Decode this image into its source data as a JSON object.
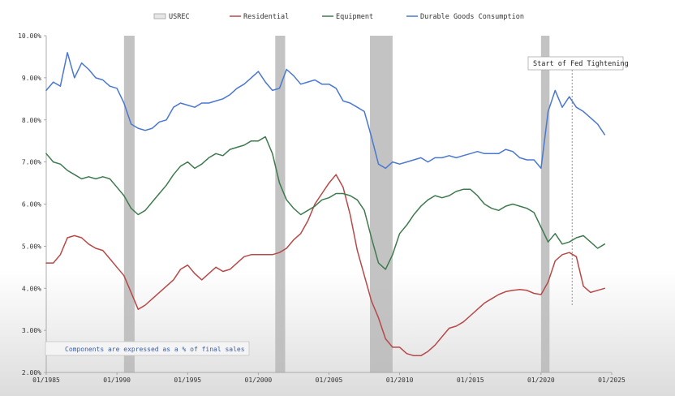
{
  "chart_data": {
    "type": "line",
    "title": "",
    "xlabel": "",
    "ylabel": "",
    "ylim": [
      2.0,
      10.0
    ],
    "xlim": [
      1985.0,
      2025.0
    ],
    "yticks": [
      "2.00%",
      "3.00%",
      "4.00%",
      "5.00%",
      "6.00%",
      "7.00%",
      "8.00%",
      "9.00%",
      "10.00%"
    ],
    "ytick_values": [
      2,
      3,
      4,
      5,
      6,
      7,
      8,
      9,
      10
    ],
    "xticks": [
      "01/1985",
      "01/1990",
      "01/1995",
      "01/2000",
      "01/2005",
      "01/2010",
      "01/2015",
      "01/2020",
      "01/2025"
    ],
    "xtick_values": [
      1985,
      1990,
      1995,
      2000,
      2005,
      2010,
      2015,
      2020,
      2025
    ],
    "legend": {
      "position": "top",
      "entries": [
        {
          "name": "USREC",
          "color": "#c8c8c8"
        },
        {
          "name": "Residential",
          "color": "#b84848"
        },
        {
          "name": "Equipment",
          "color": "#3e7a4e"
        },
        {
          "name": "Durable Goods Consumption",
          "color": "#4a78d0"
        }
      ]
    },
    "recessions": [
      {
        "start": 1990.5,
        "end": 1991.25
      },
      {
        "start": 2001.2,
        "end": 2001.9
      },
      {
        "start": 2007.9,
        "end": 2009.5
      },
      {
        "start": 2020.0,
        "end": 2020.6
      }
    ],
    "annotation": {
      "text": "Start of Fed Tightening",
      "x": 2022.2
    },
    "note": "Components are expressed as a % of final sales",
    "series": [
      {
        "name": "Residential",
        "color": "#b84848",
        "x": [
          1985.0,
          1985.5,
          1986.0,
          1986.5,
          1987.0,
          1987.5,
          1988.0,
          1988.5,
          1989.0,
          1989.5,
          1990.0,
          1990.5,
          1991.0,
          1991.5,
          1992.0,
          1992.5,
          1993.0,
          1993.5,
          1994.0,
          1994.5,
          1995.0,
          1995.5,
          1996.0,
          1996.5,
          1997.0,
          1997.5,
          1998.0,
          1998.5,
          1999.0,
          1999.5,
          2000.0,
          2000.5,
          2001.0,
          2001.5,
          2002.0,
          2002.5,
          2003.0,
          2003.5,
          2004.0,
          2004.5,
          2005.0,
          2005.5,
          2006.0,
          2006.5,
          2007.0,
          2007.5,
          2008.0,
          2008.5,
          2009.0,
          2009.5,
          2010.0,
          2010.5,
          2011.0,
          2011.5,
          2012.0,
          2012.5,
          2013.0,
          2013.5,
          2014.0,
          2014.5,
          2015.0,
          2015.5,
          2016.0,
          2016.5,
          2017.0,
          2017.5,
          2018.0,
          2018.5,
          2019.0,
          2019.5,
          2020.0,
          2020.5,
          2021.0,
          2021.5,
          2022.0,
          2022.5,
          2023.0,
          2023.5,
          2024.0,
          2024.5
        ],
        "values": [
          4.6,
          4.6,
          4.8,
          5.2,
          5.25,
          5.2,
          5.05,
          4.95,
          4.9,
          4.7,
          4.5,
          4.3,
          3.9,
          3.5,
          3.6,
          3.75,
          3.9,
          4.05,
          4.2,
          4.45,
          4.55,
          4.35,
          4.2,
          4.35,
          4.5,
          4.4,
          4.45,
          4.6,
          4.75,
          4.8,
          4.8,
          4.8,
          4.8,
          4.85,
          4.95,
          5.15,
          5.3,
          5.6,
          6.0,
          6.25,
          6.5,
          6.7,
          6.4,
          5.75,
          4.9,
          4.3,
          3.7,
          3.3,
          2.8,
          2.6,
          2.6,
          2.45,
          2.4,
          2.4,
          2.5,
          2.65,
          2.85,
          3.05,
          3.1,
          3.2,
          3.35,
          3.5,
          3.65,
          3.75,
          3.85,
          3.92,
          3.95,
          3.97,
          3.95,
          3.88,
          3.85,
          4.15,
          4.65,
          4.8,
          4.85,
          4.75,
          4.05,
          3.9,
          3.95,
          4.0
        ]
      },
      {
        "name": "Equipment",
        "color": "#3e7a4e",
        "x": [
          1985.0,
          1985.5,
          1986.0,
          1986.5,
          1987.0,
          1987.5,
          1988.0,
          1988.5,
          1989.0,
          1989.5,
          1990.0,
          1990.5,
          1991.0,
          1991.5,
          1992.0,
          1992.5,
          1993.0,
          1993.5,
          1994.0,
          1994.5,
          1995.0,
          1995.5,
          1996.0,
          1996.5,
          1997.0,
          1997.5,
          1998.0,
          1998.5,
          1999.0,
          1999.5,
          2000.0,
          2000.5,
          2001.0,
          2001.5,
          2002.0,
          2002.5,
          2003.0,
          2003.5,
          2004.0,
          2004.5,
          2005.0,
          2005.5,
          2006.0,
          2006.5,
          2007.0,
          2007.5,
          2008.0,
          2008.5,
          2009.0,
          2009.5,
          2010.0,
          2010.5,
          2011.0,
          2011.5,
          2012.0,
          2012.5,
          2013.0,
          2013.5,
          2014.0,
          2014.5,
          2015.0,
          2015.5,
          2016.0,
          2016.5,
          2017.0,
          2017.5,
          2018.0,
          2018.5,
          2019.0,
          2019.5,
          2020.0,
          2020.5,
          2021.0,
          2021.5,
          2022.0,
          2022.5,
          2023.0,
          2023.5,
          2024.0,
          2024.5
        ],
        "values": [
          7.2,
          7.0,
          6.95,
          6.8,
          6.7,
          6.6,
          6.65,
          6.6,
          6.65,
          6.6,
          6.4,
          6.2,
          5.9,
          5.75,
          5.85,
          6.05,
          6.25,
          6.45,
          6.7,
          6.9,
          7.0,
          6.85,
          6.95,
          7.1,
          7.2,
          7.15,
          7.3,
          7.35,
          7.4,
          7.5,
          7.5,
          7.6,
          7.2,
          6.5,
          6.1,
          5.9,
          5.75,
          5.85,
          5.95,
          6.1,
          6.15,
          6.25,
          6.25,
          6.2,
          6.1,
          5.85,
          5.2,
          4.6,
          4.45,
          4.8,
          5.3,
          5.5,
          5.75,
          5.95,
          6.1,
          6.2,
          6.15,
          6.2,
          6.3,
          6.35,
          6.35,
          6.2,
          6.0,
          5.9,
          5.85,
          5.95,
          6.0,
          5.95,
          5.9,
          5.8,
          5.45,
          5.1,
          5.3,
          5.05,
          5.1,
          5.2,
          5.25,
          5.1,
          4.95,
          5.05
        ]
      },
      {
        "name": "Durable Goods Consumption",
        "color": "#4a78d0",
        "x": [
          1985.0,
          1985.5,
          1986.0,
          1986.5,
          1987.0,
          1987.5,
          1988.0,
          1988.5,
          1989.0,
          1989.5,
          1990.0,
          1990.5,
          1991.0,
          1991.5,
          1992.0,
          1992.5,
          1993.0,
          1993.5,
          1994.0,
          1994.5,
          1995.0,
          1995.5,
          1996.0,
          1996.5,
          1997.0,
          1997.5,
          1998.0,
          1998.5,
          1999.0,
          1999.5,
          2000.0,
          2000.5,
          2001.0,
          2001.5,
          2002.0,
          2002.5,
          2003.0,
          2003.5,
          2004.0,
          2004.5,
          2005.0,
          2005.5,
          2006.0,
          2006.5,
          2007.0,
          2007.5,
          2008.0,
          2008.5,
          2009.0,
          2009.5,
          2010.0,
          2010.5,
          2011.0,
          2011.5,
          2012.0,
          2012.5,
          2013.0,
          2013.5,
          2014.0,
          2014.5,
          2015.0,
          2015.5,
          2016.0,
          2016.5,
          2017.0,
          2017.5,
          2018.0,
          2018.5,
          2019.0,
          2019.5,
          2020.0,
          2020.5,
          2021.0,
          2021.5,
          2022.0,
          2022.5,
          2023.0,
          2023.5,
          2024.0,
          2024.5
        ],
        "values": [
          8.7,
          8.9,
          8.8,
          9.6,
          9.0,
          9.35,
          9.2,
          9.0,
          8.95,
          8.8,
          8.75,
          8.4,
          7.9,
          7.8,
          7.75,
          7.8,
          7.95,
          8.0,
          8.3,
          8.4,
          8.35,
          8.3,
          8.4,
          8.4,
          8.45,
          8.5,
          8.6,
          8.75,
          8.85,
          9.0,
          9.15,
          8.9,
          8.7,
          8.75,
          9.2,
          9.05,
          8.85,
          8.9,
          8.95,
          8.85,
          8.85,
          8.75,
          8.45,
          8.4,
          8.3,
          8.2,
          7.6,
          6.95,
          6.85,
          7.0,
          6.95,
          7.0,
          7.05,
          7.1,
          7.0,
          7.1,
          7.1,
          7.15,
          7.1,
          7.15,
          7.2,
          7.25,
          7.2,
          7.2,
          7.2,
          7.3,
          7.25,
          7.1,
          7.05,
          7.05,
          6.85,
          8.2,
          8.7,
          8.3,
          8.55,
          8.3,
          8.2,
          8.05,
          7.9,
          7.65
        ]
      }
    ]
  }
}
